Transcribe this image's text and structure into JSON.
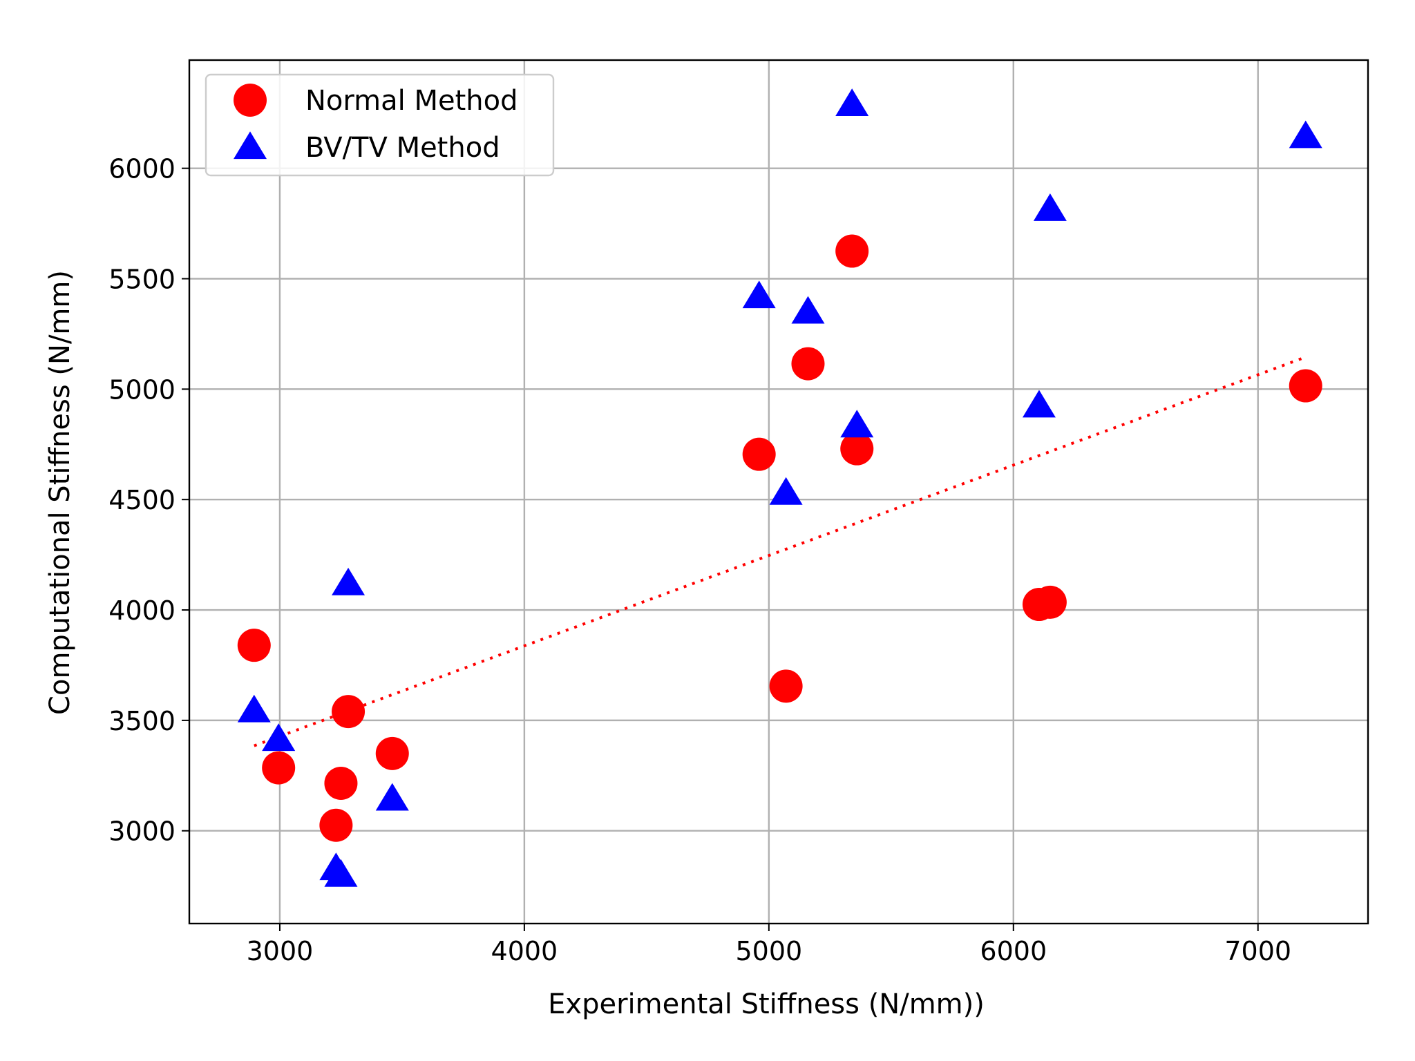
{
  "chart_data": {
    "type": "scatter",
    "title": "",
    "xlabel": "Experimental Stiffness (N/mm))",
    "ylabel": "Computational Stiffness (N/mm)",
    "xlim": [
      2630,
      7450
    ],
    "ylim": [
      2580,
      6490
    ],
    "xticks": [
      3000,
      4000,
      5000,
      6000,
      7000
    ],
    "yticks": [
      3000,
      3500,
      4000,
      4500,
      5000,
      5500,
      6000
    ],
    "grid": true,
    "legend_position": "top-left",
    "series": [
      {
        "name": "Normal Method",
        "marker": "circle",
        "color": "#ff0000",
        "points": [
          {
            "x": 2895,
            "y": 3840
          },
          {
            "x": 2995,
            "y": 3285
          },
          {
            "x": 3230,
            "y": 3025
          },
          {
            "x": 3250,
            "y": 3215
          },
          {
            "x": 3280,
            "y": 3540
          },
          {
            "x": 3460,
            "y": 3350
          },
          {
            "x": 4960,
            "y": 4705
          },
          {
            "x": 5070,
            "y": 3655
          },
          {
            "x": 5160,
            "y": 5115
          },
          {
            "x": 5340,
            "y": 5625
          },
          {
            "x": 5360,
            "y": 4730
          },
          {
            "x": 6105,
            "y": 4025
          },
          {
            "x": 6150,
            "y": 4035
          },
          {
            "x": 7195,
            "y": 5015
          }
        ]
      },
      {
        "name": "BV/TV Method",
        "marker": "triangle",
        "color": "#0000ff",
        "points": [
          {
            "x": 2895,
            "y": 3545
          },
          {
            "x": 2995,
            "y": 3415
          },
          {
            "x": 3230,
            "y": 2830
          },
          {
            "x": 3250,
            "y": 2800
          },
          {
            "x": 3280,
            "y": 4120
          },
          {
            "x": 3460,
            "y": 3145
          },
          {
            "x": 4960,
            "y": 5420
          },
          {
            "x": 5070,
            "y": 4530
          },
          {
            "x": 5160,
            "y": 5350
          },
          {
            "x": 5340,
            "y": 6290
          },
          {
            "x": 5360,
            "y": 4835
          },
          {
            "x": 6105,
            "y": 4925
          },
          {
            "x": 6150,
            "y": 5815
          },
          {
            "x": 7195,
            "y": 6145
          }
        ]
      }
    ],
    "trendline": {
      "style": "dotted",
      "color": "#ff0000",
      "x": [
        2895,
        7195
      ],
      "y": [
        3385,
        5145
      ]
    }
  }
}
